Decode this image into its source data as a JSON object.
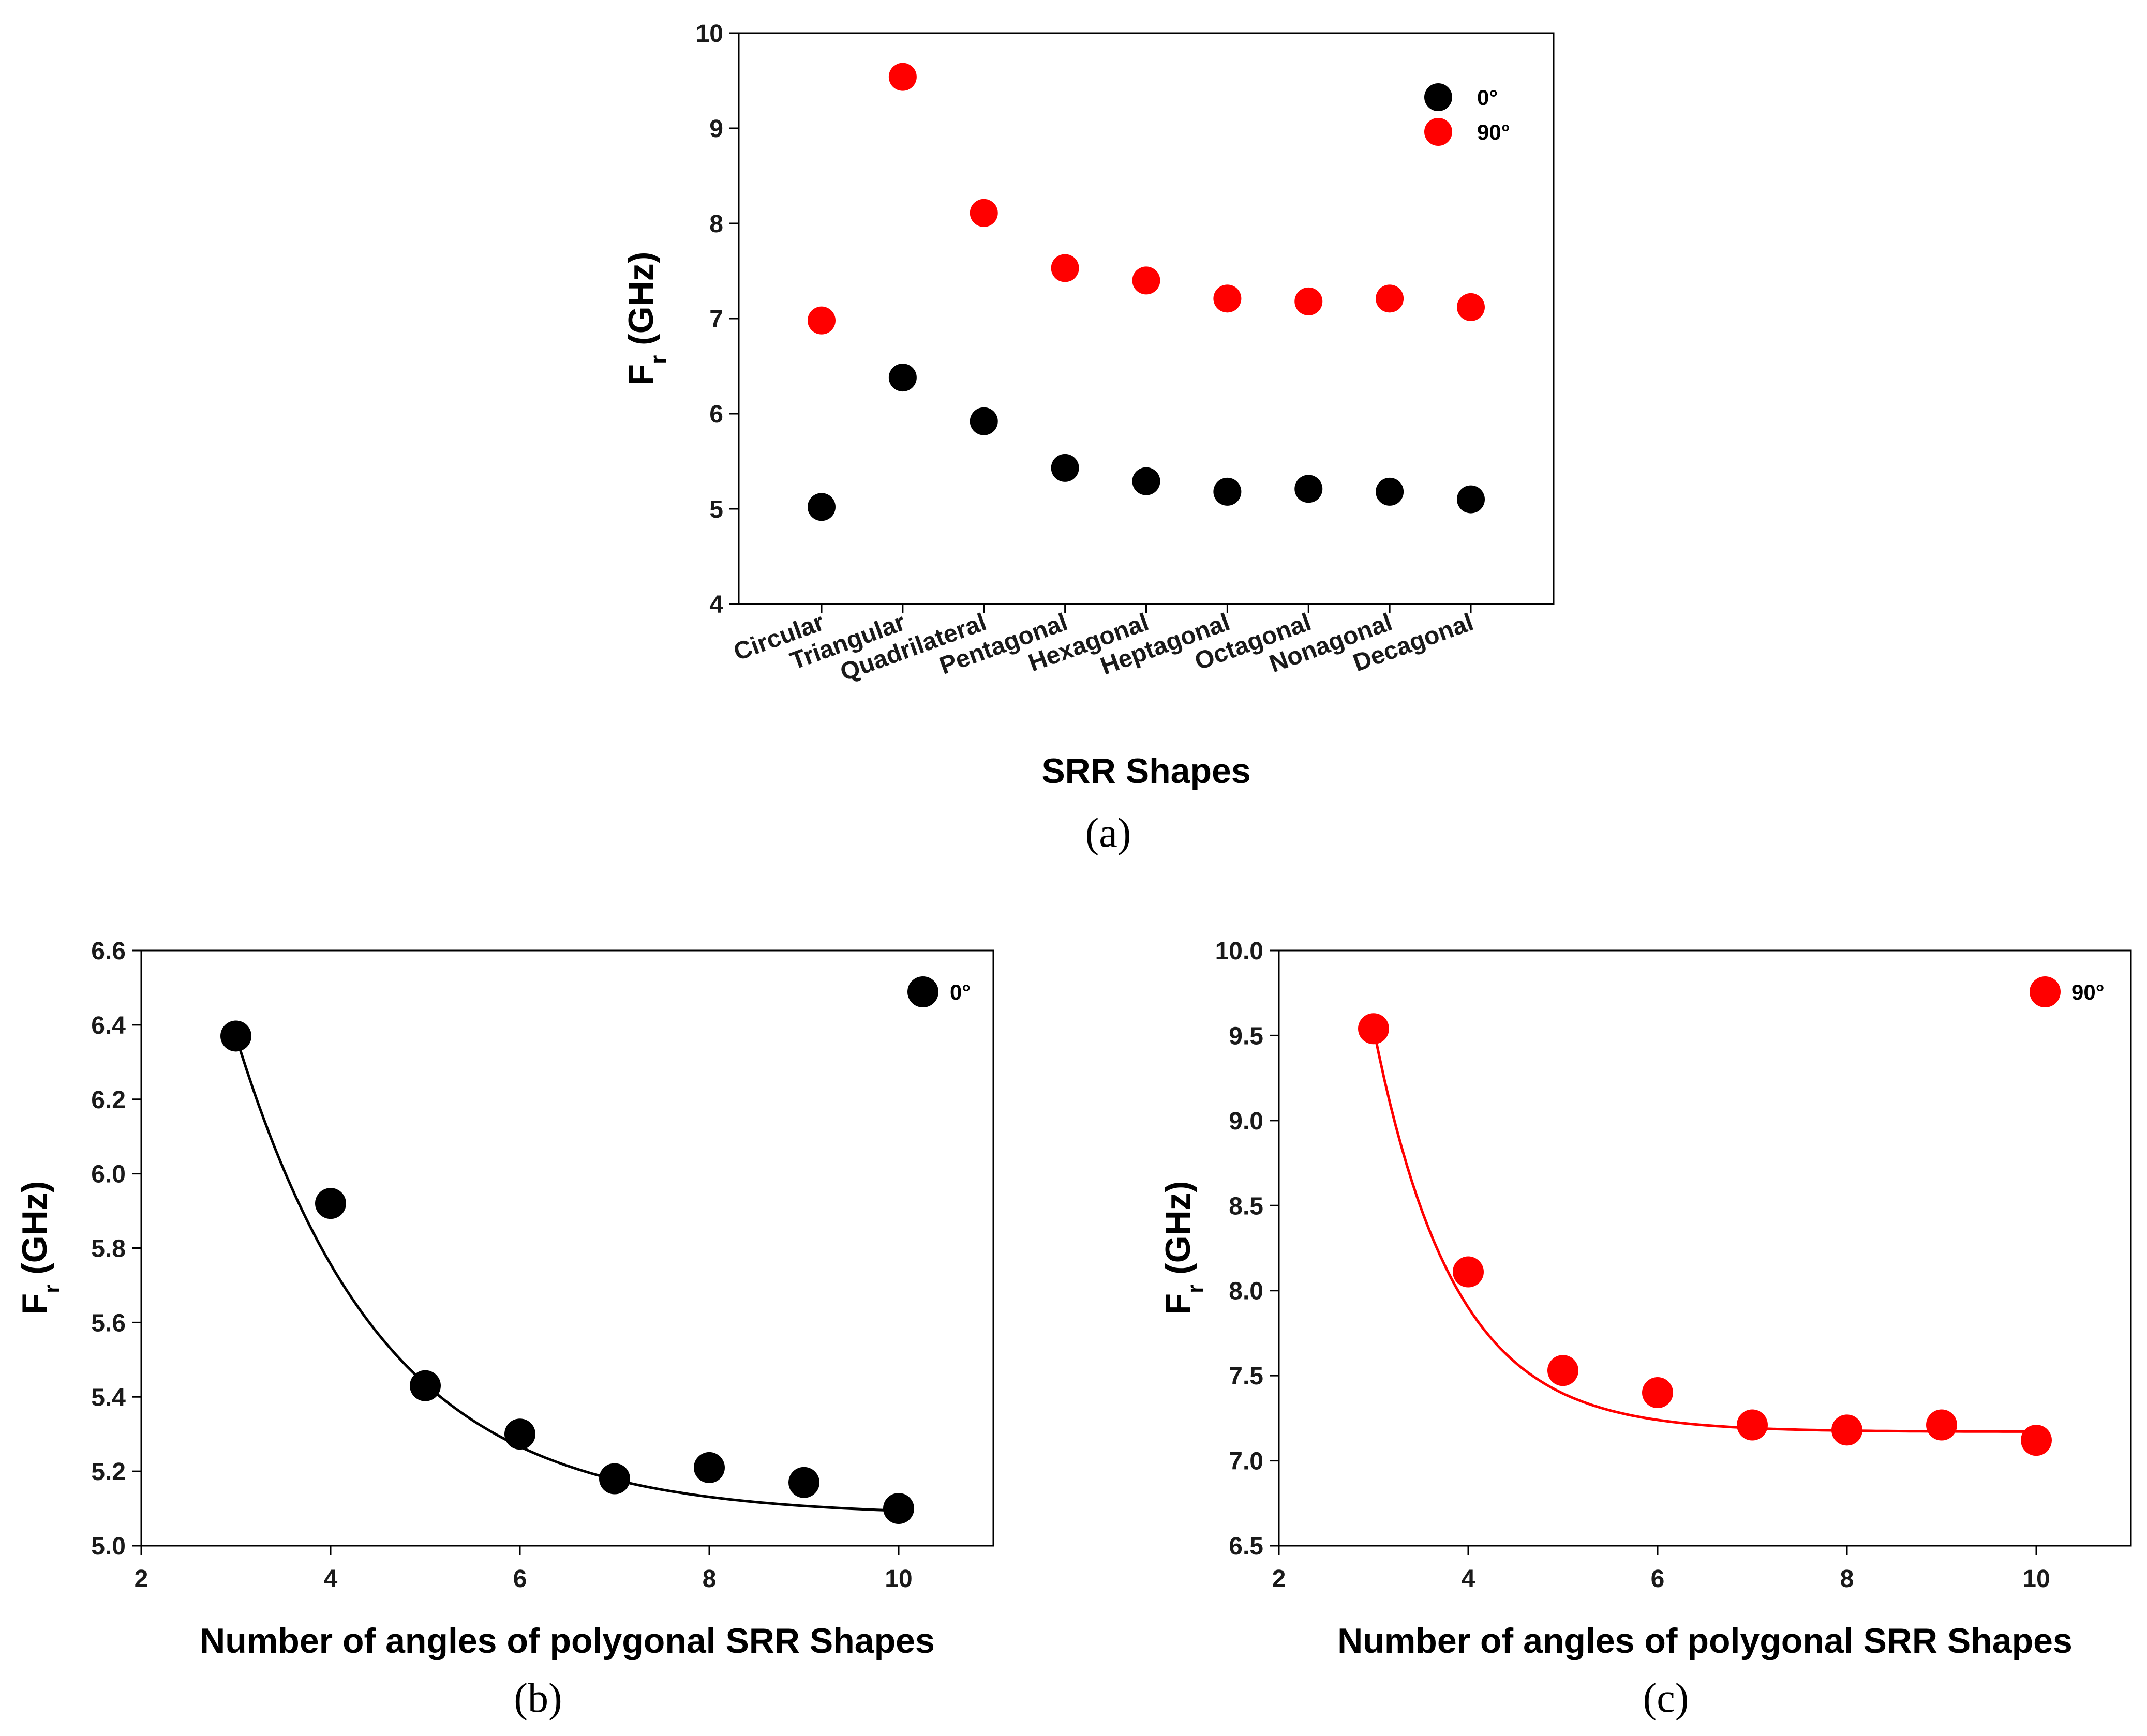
{
  "chart_data": [
    {
      "id": "a",
      "type": "scatter",
      "caption": "(a)",
      "xlabel": "SRR Shapes",
      "ylabel_main": "F",
      "ylabel_sub": "r",
      "ylabel_rest": " (GHz)",
      "categories": [
        "Circular",
        "Triangular",
        "Quadrilateral",
        "Pentagonal",
        "Hexagonal",
        "Heptagonal",
        "Octagonal",
        "Nonagonal",
        "Decagonal"
      ],
      "ylim": [
        4,
        10
      ],
      "yticks": [
        4,
        5,
        6,
        7,
        8,
        9,
        10
      ],
      "series": [
        {
          "name": "0°",
          "color": "#000000",
          "values": [
            5.02,
            6.38,
            5.92,
            5.43,
            5.29,
            5.18,
            5.21,
            5.18,
            5.1
          ]
        },
        {
          "name": "90°",
          "color": "#ff0000",
          "values": [
            6.98,
            9.54,
            8.11,
            7.53,
            7.4,
            7.21,
            7.18,
            7.21,
            7.12
          ]
        }
      ],
      "legend_position": "top-right"
    },
    {
      "id": "b",
      "type": "scatter",
      "caption": "(b)",
      "xlabel": "Number of angles of polygonal SRR Shapes",
      "ylabel_main": "F",
      "ylabel_sub": "r",
      "ylabel_rest": " (GHz)",
      "xlim": [
        2,
        11
      ],
      "xticks": [
        2,
        4,
        6,
        8,
        10
      ],
      "ylim": [
        5.0,
        6.6
      ],
      "yticks": [
        "5.0",
        "5.2",
        "5.4",
        "5.6",
        "5.8",
        "6.0",
        "6.2",
        "6.4",
        "6.6"
      ],
      "series": [
        {
          "name": "0°",
          "color": "#000000",
          "x": [
            3,
            4,
            5,
            6,
            7,
            8,
            9,
            10
          ],
          "y": [
            6.37,
            5.92,
            5.43,
            5.3,
            5.18,
            5.21,
            5.17,
            5.1
          ]
        }
      ],
      "fit": {
        "type": "exponential",
        "y0": 5.08,
        "A": 1.29,
        "t": 1.55,
        "x_from": 3,
        "x_to": 10
      },
      "legend_position": "top-right"
    },
    {
      "id": "c",
      "type": "scatter",
      "caption": "(c)",
      "xlabel": "Number of angles of polygonal SRR Shapes",
      "ylabel_main": "F",
      "ylabel_sub": "r",
      "ylabel_rest": " (GHz)",
      "xlim": [
        2,
        11
      ],
      "xticks": [
        2,
        4,
        6,
        8,
        10
      ],
      "ylim": [
        6.5,
        10.0
      ],
      "yticks": [
        "6.5",
        "7.0",
        "7.5",
        "8.0",
        "8.5",
        "9.0",
        "9.5",
        "10.0"
      ],
      "series": [
        {
          "name": "90°",
          "color": "#ff0000",
          "x": [
            3,
            4,
            5,
            6,
            7,
            8,
            9,
            10
          ],
          "y": [
            9.54,
            8.11,
            7.53,
            7.4,
            7.21,
            7.18,
            7.21,
            7.12
          ]
        }
      ],
      "fit": {
        "type": "exponential",
        "y0": 7.17,
        "A": 2.37,
        "t": 0.85,
        "x_from": 3,
        "x_to": 10
      },
      "legend_position": "top-right"
    }
  ]
}
